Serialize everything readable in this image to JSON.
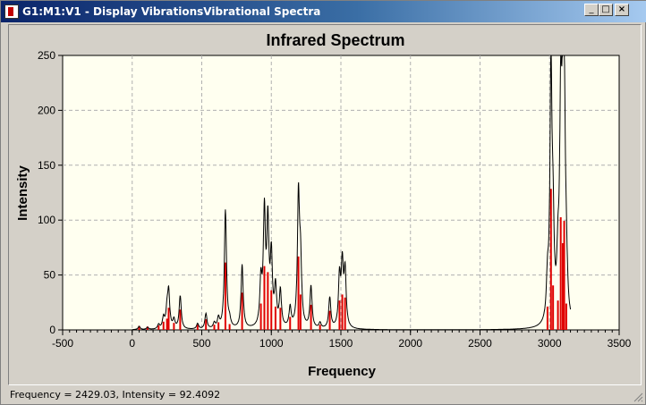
{
  "window": {
    "title": "G1:M1:V1 - Display VibrationsVibrational Spectra",
    "minimize_label": "_",
    "maximize_label": "□",
    "close_label": "×"
  },
  "status": {
    "text": "Frequency = 2429.03,  Intensity = 92.4092"
  },
  "colors": {
    "plot_background": "#fffff0",
    "frame_background": "#d4d0c8",
    "spectrum_line": "#000000",
    "stick": "#e00000",
    "grid": "#b0b0b0"
  },
  "chart_data": {
    "type": "line",
    "title": "Infrared Spectrum",
    "xlabel": "Frequency",
    "ylabel": "Intensity",
    "xlim": [
      -500,
      3500
    ],
    "ylim": [
      0,
      250
    ],
    "x_ticks": [
      "-500",
      "0",
      "500",
      "1000",
      "1500",
      "2000",
      "2500",
      "3000",
      "3500"
    ],
    "y_ticks": [
      "0",
      "50",
      "100",
      "150",
      "200",
      "250"
    ],
    "grid": true,
    "spectrum_range": [
      0,
      3150
    ],
    "peaks": [
      {
        "x": 50,
        "y": 3
      },
      {
        "x": 110,
        "y": 2
      },
      {
        "x": 190,
        "y": 4
      },
      {
        "x": 225,
        "y": 10
      },
      {
        "x": 250,
        "y": 15
      },
      {
        "x": 262,
        "y": 33
      },
      {
        "x": 300,
        "y": 8
      },
      {
        "x": 345,
        "y": 30
      },
      {
        "x": 470,
        "y": 5
      },
      {
        "x": 530,
        "y": 14
      },
      {
        "x": 590,
        "y": 5
      },
      {
        "x": 620,
        "y": 9
      },
      {
        "x": 670,
        "y": 108
      },
      {
        "x": 700,
        "y": 6
      },
      {
        "x": 790,
        "y": 58
      },
      {
        "x": 925,
        "y": 40
      },
      {
        "x": 950,
        "y": 102
      },
      {
        "x": 975,
        "y": 92
      },
      {
        "x": 1000,
        "y": 62
      },
      {
        "x": 1030,
        "y": 35
      },
      {
        "x": 1065,
        "y": 33
      },
      {
        "x": 1135,
        "y": 18
      },
      {
        "x": 1195,
        "y": 118
      },
      {
        "x": 1210,
        "y": 55
      },
      {
        "x": 1285,
        "y": 38
      },
      {
        "x": 1350,
        "y": 5
      },
      {
        "x": 1420,
        "y": 28
      },
      {
        "x": 1490,
        "y": 45
      },
      {
        "x": 1510,
        "y": 55
      },
      {
        "x": 1530,
        "y": 50
      },
      {
        "x": 2985,
        "y": 35
      },
      {
        "x": 3010,
        "y": 230
      },
      {
        "x": 3025,
        "y": 70
      },
      {
        "x": 3060,
        "y": 45
      },
      {
        "x": 3080,
        "y": 183
      },
      {
        "x": 3095,
        "y": 140
      },
      {
        "x": 3105,
        "y": 177
      },
      {
        "x": 3120,
        "y": 40
      }
    ]
  }
}
